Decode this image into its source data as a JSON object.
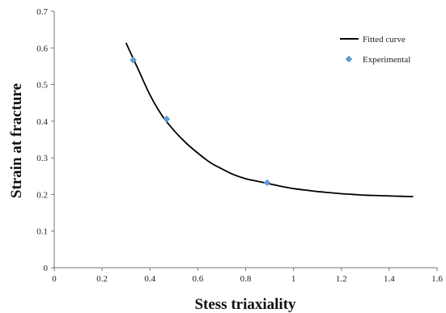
{
  "chart_data": {
    "type": "scatter",
    "title": "",
    "xlabel": "Stess triaxiality",
    "ylabel": "Strain at fracture",
    "xlim": [
      0,
      1.6
    ],
    "ylim": [
      0,
      0.7
    ],
    "x_ticks": [
      "0",
      "0.2",
      "0.4",
      "0.6",
      "0.8",
      "1",
      "1.2",
      "1.4",
      "1.6"
    ],
    "y_ticks": [
      "0",
      "0.1",
      "0.2",
      "0.3",
      "0.4",
      "0.5",
      "0.6",
      "0.7"
    ],
    "grid": false,
    "legend_position": "top-right",
    "series": [
      {
        "name": "Fitted curve",
        "kind": "line",
        "color": "#000000",
        "x": [
          0.3,
          0.35,
          0.4,
          0.45,
          0.5,
          0.55,
          0.6,
          0.65,
          0.7,
          0.75,
          0.8,
          0.85,
          0.9,
          0.95,
          1.0,
          1.05,
          1.1,
          1.15,
          1.2,
          1.25,
          1.3,
          1.35,
          1.4,
          1.45,
          1.5
        ],
        "y": [
          0.614,
          0.543,
          0.472,
          0.416,
          0.375,
          0.341,
          0.313,
          0.288,
          0.27,
          0.254,
          0.243,
          0.236,
          0.229,
          0.222,
          0.216,
          0.212,
          0.208,
          0.205,
          0.202,
          0.2,
          0.198,
          0.197,
          0.196,
          0.195,
          0.194
        ]
      },
      {
        "name": "Experimental",
        "kind": "scatter",
        "color": "#5b9bd5",
        "x": [
          0.33,
          0.47,
          0.89
        ],
        "y": [
          0.567,
          0.406,
          0.232
        ]
      }
    ]
  }
}
